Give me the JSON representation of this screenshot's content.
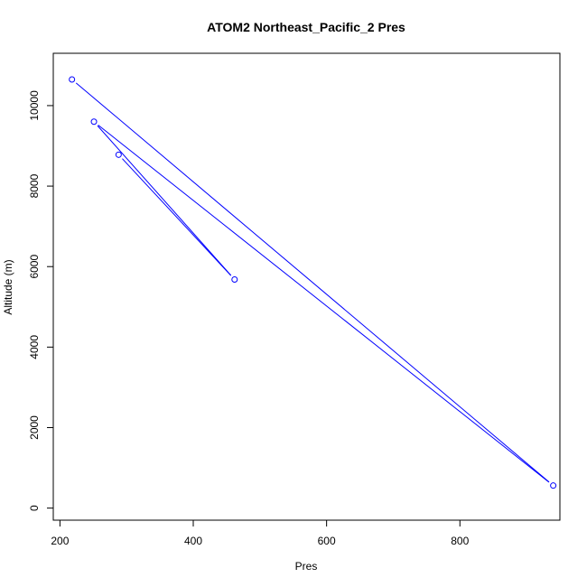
{
  "chart_data": {
    "type": "line",
    "title": "ATOM2 Northeast_Pacific_2 Pres",
    "xlabel": "Pres",
    "ylabel": "Altitude (m)",
    "xlim": [
      190,
      950
    ],
    "ylim": [
      -300,
      11300
    ],
    "x_ticks": [
      200,
      400,
      600,
      800
    ],
    "y_ticks": [
      0,
      2000,
      4000,
      6000,
      8000,
      10000
    ],
    "grid": false,
    "series": [
      {
        "color": "#0000ff",
        "marker": "open-circle",
        "points": [
          {
            "x": 218,
            "y": 10650
          },
          {
            "x": 940,
            "y": 560
          },
          {
            "x": 251,
            "y": 9600
          },
          {
            "x": 462,
            "y": 5680
          },
          {
            "x": 288,
            "y": 8780
          }
        ]
      }
    ]
  }
}
